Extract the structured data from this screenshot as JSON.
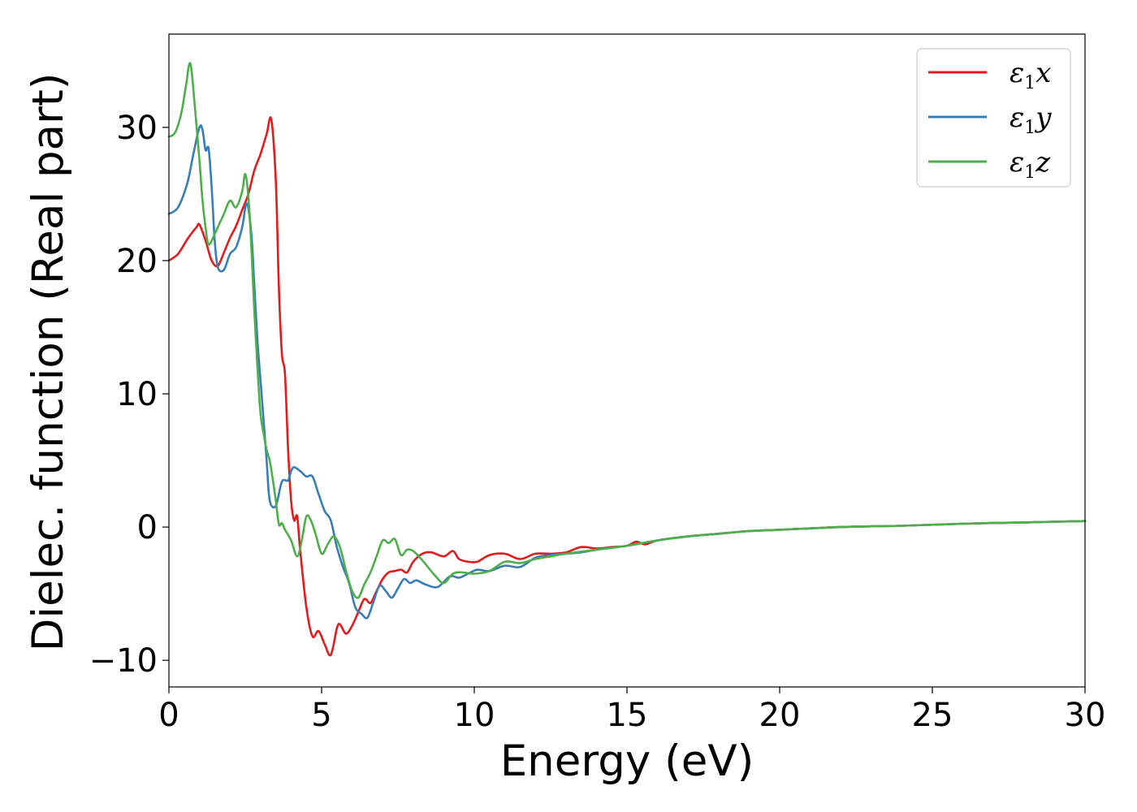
{
  "chart_data": {
    "type": "line",
    "title": "",
    "xlabel": "Energy (eV)",
    "ylabel": "Dielec. function (Real part)",
    "xlim": [
      0,
      30
    ],
    "ylim": [
      -12,
      37
    ],
    "xticks": [
      0,
      5,
      10,
      15,
      20,
      25,
      30
    ],
    "xtick_labels": [
      "0",
      "5",
      "10",
      "15",
      "20",
      "25",
      "30"
    ],
    "yticks": [
      -10,
      0,
      10,
      20,
      30
    ],
    "ytick_labels": [
      "−10",
      "0",
      "10",
      "20",
      "30"
    ],
    "grid": false,
    "legend_position": "top-right",
    "series": [
      {
        "name": "ε1x",
        "legend_symbol": "ε",
        "legend_sub": "1",
        "legend_var": "x",
        "color": "#e41a1c",
        "x": [
          0,
          0.3,
          0.6,
          0.9,
          1.0,
          1.2,
          1.4,
          1.6,
          1.8,
          2.0,
          2.2,
          2.4,
          2.6,
          2.8,
          3.0,
          3.2,
          3.35,
          3.5,
          3.6,
          3.7,
          3.8,
          3.9,
          4.0,
          4.1,
          4.2,
          4.3,
          4.5,
          4.7,
          4.9,
          5.1,
          5.3,
          5.5,
          5.6,
          5.8,
          6.0,
          6.2,
          6.4,
          6.6,
          6.8,
          7.0,
          7.2,
          7.4,
          7.6,
          7.8,
          8.0,
          8.3,
          8.6,
          9.0,
          9.3,
          9.5,
          9.8,
          10.1,
          10.5,
          11.0,
          11.5,
          12.0,
          12.5,
          13.0,
          13.5,
          14.0,
          14.5,
          15.0,
          15.3,
          15.6,
          16.0,
          17.0,
          18.0,
          19.0,
          20.0,
          22.0,
          24.0,
          26.0,
          28.0,
          30.0
        ],
        "y": [
          20.0,
          20.5,
          21.6,
          22.5,
          22.7,
          21.5,
          20.0,
          19.6,
          20.6,
          21.7,
          22.6,
          23.8,
          25.0,
          26.8,
          28.0,
          29.5,
          30.6,
          26.0,
          18.0,
          13.0,
          11.5,
          6.0,
          2.0,
          0.5,
          0.8,
          -1.8,
          -6.0,
          -8.2,
          -7.8,
          -8.8,
          -9.6,
          -7.6,
          -7.3,
          -8.0,
          -7.4,
          -6.4,
          -5.4,
          -5.7,
          -4.8,
          -3.9,
          -3.4,
          -3.3,
          -3.2,
          -3.4,
          -2.6,
          -2.0,
          -1.9,
          -2.2,
          -1.8,
          -2.4,
          -2.6,
          -2.6,
          -2.1,
          -2.0,
          -2.4,
          -2.0,
          -2.0,
          -1.9,
          -1.5,
          -1.6,
          -1.5,
          -1.4,
          -1.1,
          -1.3,
          -1.0,
          -0.7,
          -0.5,
          -0.3,
          -0.2,
          0.0,
          0.1,
          0.25,
          0.35,
          0.45
        ]
      },
      {
        "name": "ε1y",
        "legend_symbol": "ε",
        "legend_sub": "1",
        "legend_var": "y",
        "color": "#377eb8",
        "x": [
          0,
          0.3,
          0.6,
          0.8,
          1.0,
          1.1,
          1.2,
          1.3,
          1.4,
          1.5,
          1.6,
          1.8,
          2.0,
          2.2,
          2.4,
          2.55,
          2.7,
          2.8,
          2.9,
          3.0,
          3.1,
          3.2,
          3.3,
          3.5,
          3.7,
          3.9,
          4.0,
          4.1,
          4.3,
          4.5,
          4.7,
          4.9,
          5.1,
          5.3,
          5.5,
          5.7,
          5.9,
          6.1,
          6.3,
          6.5,
          6.7,
          6.9,
          7.1,
          7.3,
          7.5,
          7.7,
          7.9,
          8.1,
          8.4,
          8.8,
          9.2,
          9.5,
          9.8,
          10.1,
          10.5,
          11.0,
          11.5,
          12.0,
          12.5,
          13.0,
          13.5,
          14.0,
          15.0,
          16.0,
          17.0,
          18.0,
          19.0,
          20.0,
          22.0,
          24.0,
          26.0,
          28.0,
          30.0
        ],
        "y": [
          23.5,
          24.0,
          25.8,
          28.0,
          30.0,
          29.8,
          28.3,
          28.4,
          25.5,
          21.5,
          19.5,
          19.3,
          20.5,
          21.0,
          22.5,
          24.3,
          22.0,
          18.0,
          14.0,
          11.0,
          8.0,
          5.0,
          2.0,
          1.6,
          3.4,
          3.5,
          4.2,
          4.5,
          4.2,
          3.8,
          3.8,
          2.5,
          1.2,
          0.5,
          -1.5,
          -3.0,
          -4.2,
          -6.0,
          -6.5,
          -6.8,
          -5.6,
          -4.4,
          -4.8,
          -5.3,
          -4.6,
          -3.9,
          -4.2,
          -4.0,
          -4.3,
          -4.5,
          -3.7,
          -3.8,
          -3.5,
          -3.2,
          -3.3,
          -2.9,
          -3.0,
          -2.3,
          -2.1,
          -2.0,
          -1.9,
          -1.7,
          -1.4,
          -1.0,
          -0.7,
          -0.5,
          -0.3,
          -0.2,
          0.0,
          0.1,
          0.25,
          0.35,
          0.45
        ]
      },
      {
        "name": "ε1z",
        "legend_symbol": "ε",
        "legend_sub": "1",
        "legend_var": "z",
        "color": "#4daf4a",
        "x": [
          0,
          0.2,
          0.4,
          0.55,
          0.7,
          0.85,
          1.0,
          1.1,
          1.2,
          1.3,
          1.5,
          1.6,
          1.8,
          2.0,
          2.2,
          2.4,
          2.5,
          2.6,
          2.7,
          2.8,
          2.9,
          3.0,
          3.1,
          3.2,
          3.3,
          3.4,
          3.5,
          3.6,
          3.7,
          3.8,
          4.0,
          4.2,
          4.35,
          4.5,
          4.65,
          4.8,
          5.0,
          5.2,
          5.4,
          5.6,
          5.8,
          6.0,
          6.2,
          6.4,
          6.6,
          6.8,
          7.0,
          7.2,
          7.4,
          7.6,
          7.8,
          8.0,
          8.3,
          8.7,
          9.0,
          9.3,
          9.6,
          10.0,
          10.5,
          11.0,
          11.5,
          12.0,
          12.5,
          13.0,
          14.0,
          15.0,
          16.0,
          17.0,
          18.0,
          19.0,
          20.0,
          22.0,
          24.0,
          26.0,
          28.0,
          30.0
        ],
        "y": [
          29.3,
          29.6,
          31.0,
          33.0,
          34.8,
          31.5,
          27.5,
          24.5,
          22.5,
          21.2,
          22.0,
          22.5,
          23.5,
          24.5,
          24.0,
          25.2,
          26.5,
          24.8,
          21.0,
          16.0,
          12.0,
          8.5,
          7.0,
          5.8,
          5.0,
          3.6,
          2.0,
          0.2,
          0.3,
          -0.2,
          -1.0,
          -2.2,
          -1.0,
          0.8,
          0.5,
          -0.5,
          -2.0,
          -1.3,
          -0.7,
          -1.5,
          -3.3,
          -4.8,
          -5.3,
          -4.3,
          -3.4,
          -2.2,
          -1.0,
          -1.2,
          -0.9,
          -2.1,
          -1.7,
          -1.8,
          -2.5,
          -3.6,
          -4.2,
          -3.5,
          -3.4,
          -3.5,
          -3.3,
          -2.6,
          -2.7,
          -2.4,
          -2.2,
          -2.0,
          -1.7,
          -1.4,
          -1.0,
          -0.7,
          -0.5,
          -0.3,
          -0.2,
          0.0,
          0.1,
          0.25,
          0.35,
          0.45
        ]
      }
    ]
  }
}
